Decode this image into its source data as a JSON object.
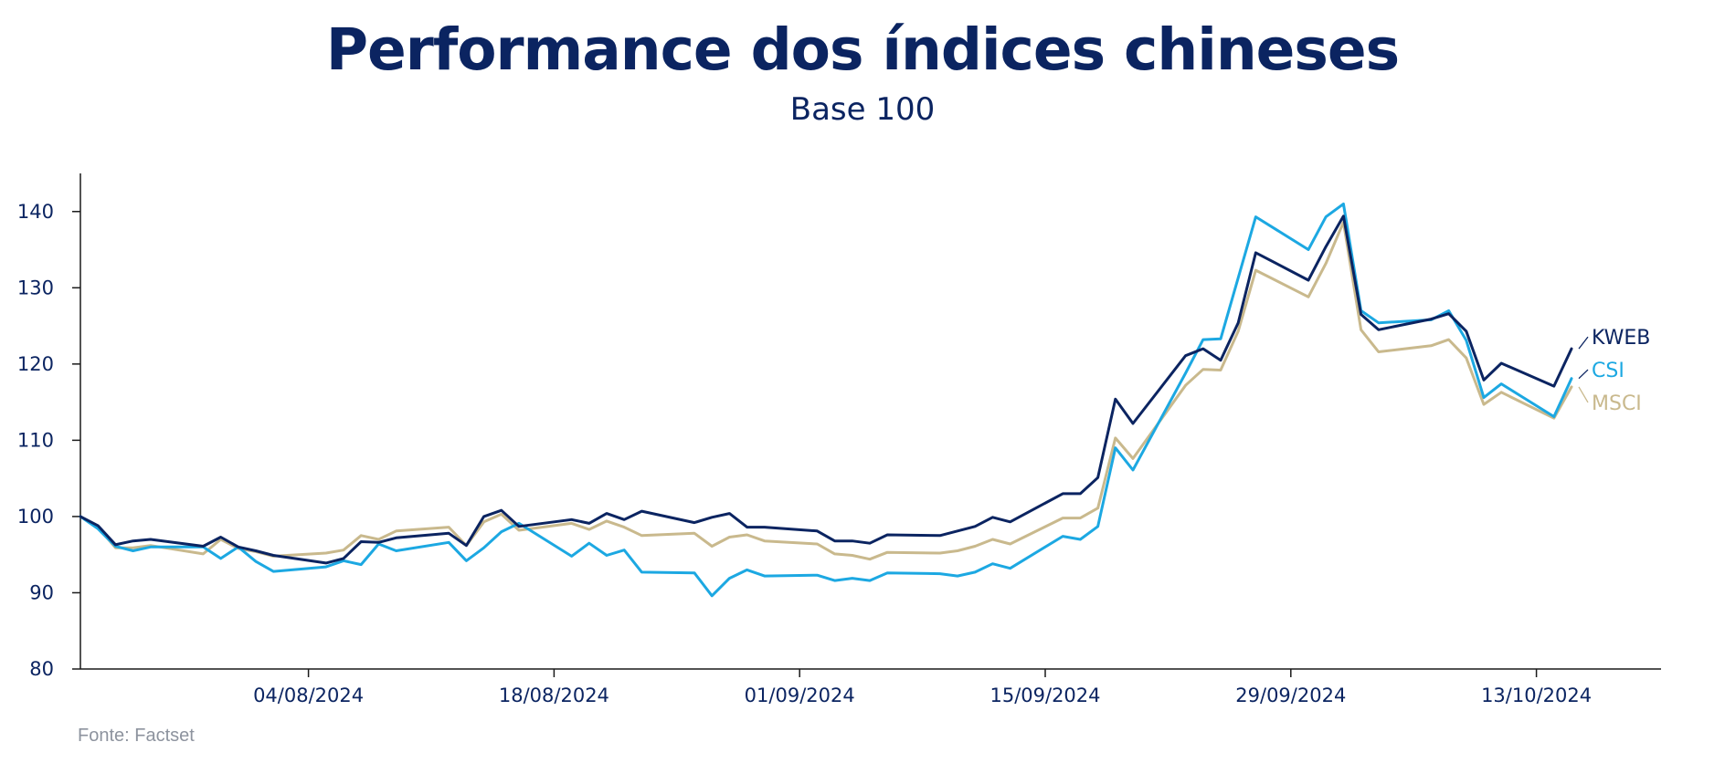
{
  "title": "Performance dos índices chineses",
  "subtitle": "Base 100",
  "source": "Fonte: Factset",
  "colors": {
    "text": "#0b2461",
    "KWEB": "#0b2461",
    "CSI": "#1ca8e2",
    "MSCI": "#c9b98d",
    "axis": "#1a1a1a",
    "source": "#8d939e"
  },
  "chart_data": {
    "type": "line",
    "title": "Performance dos índices chineses",
    "subtitle": "Base 100",
    "ylim": [
      80,
      145
    ],
    "yticks": [
      80,
      90,
      100,
      110,
      120,
      130,
      140
    ],
    "xlim": [
      "2024-07-22",
      "2024-10-22"
    ],
    "xticks": [
      {
        "date": "2024-08-04",
        "label": "04/08/2024"
      },
      {
        "date": "2024-08-18",
        "label": "18/08/2024"
      },
      {
        "date": "2024-09-01",
        "label": "01/09/2024"
      },
      {
        "date": "2024-09-15",
        "label": "15/09/2024"
      },
      {
        "date": "2024-09-29",
        "label": "29/09/2024"
      },
      {
        "date": "2024-10-13",
        "label": "13/10/2024"
      }
    ],
    "grid": false,
    "legend": "right, end of lines",
    "x": [
      "2024-07-22",
      "2024-07-23",
      "2024-07-24",
      "2024-07-25",
      "2024-07-26",
      "2024-07-29",
      "2024-07-30",
      "2024-07-31",
      "2024-08-01",
      "2024-08-02",
      "2024-08-05",
      "2024-08-06",
      "2024-08-07",
      "2024-08-08",
      "2024-08-09",
      "2024-08-12",
      "2024-08-13",
      "2024-08-14",
      "2024-08-15",
      "2024-08-16",
      "2024-08-19",
      "2024-08-20",
      "2024-08-21",
      "2024-08-22",
      "2024-08-23",
      "2024-08-26",
      "2024-08-27",
      "2024-08-28",
      "2024-08-29",
      "2024-08-30",
      "2024-09-02",
      "2024-09-03",
      "2024-09-04",
      "2024-09-05",
      "2024-09-06",
      "2024-09-09",
      "2024-09-10",
      "2024-09-11",
      "2024-09-12",
      "2024-09-13",
      "2024-09-16",
      "2024-09-17",
      "2024-09-18",
      "2024-09-19",
      "2024-09-20",
      "2024-09-23",
      "2024-09-24",
      "2024-09-25",
      "2024-09-26",
      "2024-09-27",
      "2024-09-30",
      "2024-10-01",
      "2024-10-02",
      "2024-10-03",
      "2024-10-04",
      "2024-10-07",
      "2024-10-08",
      "2024-10-09",
      "2024-10-10",
      "2024-10-11",
      "2024-10-14",
      "2024-10-15",
      "2024-10-16",
      "2024-10-17",
      "2024-10-18"
    ],
    "series": [
      {
        "name": "KWEB",
        "values": [
          100,
          98.8,
          96.3,
          96.8,
          97.0,
          96.1,
          97.3,
          96.0,
          95.5,
          94.9,
          93.9,
          94.5,
          96.7,
          96.6,
          97.2,
          97.8,
          96.2,
          100.0,
          100.8,
          98.7,
          99.6,
          99.1,
          100.4,
          99.6,
          100.7,
          99.2,
          99.9,
          100.4,
          98.6,
          98.6,
          98.1,
          96.8,
          96.8,
          96.5,
          97.6,
          97.5,
          98.1,
          98.7,
          99.9,
          99.3,
          103.0,
          103.0,
          105.1,
          115.4,
          112.2,
          121.1,
          122.0,
          120.5,
          125.4,
          134.6,
          131.0,
          135.4,
          139.4,
          126.5,
          124.5,
          125.9,
          126.6,
          124.3,
          117.9,
          120.1,
          117.1,
          122.0,
          null,
          null,
          null
        ]
      },
      {
        "name": "CSI",
        "values": [
          100,
          98.4,
          96.1,
          95.5,
          96.0,
          96.0,
          94.5,
          96.0,
          94.1,
          92.8,
          93.4,
          94.2,
          93.7,
          96.4,
          95.5,
          96.6,
          94.2,
          95.9,
          98.0,
          99.1,
          94.8,
          96.5,
          94.9,
          95.6,
          92.7,
          92.6,
          89.6,
          91.9,
          93.0,
          92.2,
          92.3,
          91.6,
          91.9,
          91.6,
          92.6,
          92.5,
          92.2,
          92.7,
          93.8,
          93.2,
          97.4,
          97.0,
          98.7,
          109.0,
          106.1,
          118.8,
          123.2,
          123.3,
          131.3,
          139.3,
          135.0,
          139.3,
          141.0,
          127.0,
          125.4,
          125.8,
          127.0,
          123.1,
          115.6,
          117.4,
          113.1,
          118.1,
          null,
          null,
          null
        ]
      },
      {
        "name": "MSCI",
        "values": [
          100,
          98.6,
          95.9,
          95.9,
          96.2,
          95.1,
          97.0,
          95.8,
          95.4,
          94.8,
          95.2,
          95.6,
          97.5,
          97.0,
          98.1,
          98.6,
          96.2,
          99.3,
          100.3,
          98.2,
          99.1,
          98.3,
          99.4,
          98.6,
          97.5,
          97.8,
          96.1,
          97.3,
          97.6,
          96.8,
          96.4,
          95.1,
          94.9,
          94.4,
          95.3,
          95.2,
          95.5,
          96.1,
          97.0,
          96.4,
          99.8,
          99.8,
          101.1,
          110.3,
          107.6,
          117.2,
          119.3,
          119.2,
          124.3,
          132.3,
          128.8,
          133.2,
          138.6,
          124.5,
          121.6,
          122.4,
          123.2,
          120.8,
          114.7,
          116.3,
          112.9,
          117.0,
          null,
          null,
          null
        ]
      }
    ]
  }
}
